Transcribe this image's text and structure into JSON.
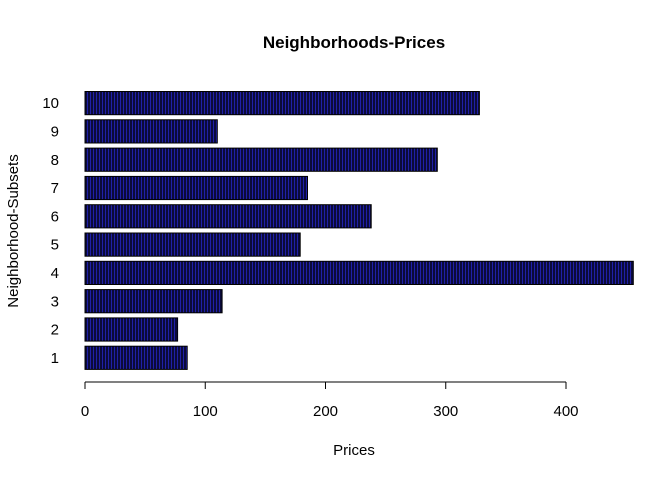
{
  "chart_data": {
    "type": "bar",
    "orientation": "horizontal",
    "title": "Neighborhoods-Prices",
    "xlabel": "Prices",
    "ylabel": "Neighborhood-Subsets",
    "categories": [
      "1",
      "2",
      "3",
      "4",
      "5",
      "6",
      "7",
      "8",
      "9",
      "10"
    ],
    "values": [
      85,
      77,
      114,
      456,
      179,
      238,
      185,
      293,
      110,
      328
    ],
    "xlim": [
      0,
      456
    ],
    "xticks": [
      "0",
      "100",
      "200",
      "300",
      "400"
    ],
    "grid": false,
    "legend": "none",
    "colors": {
      "bar_fill": "#0b0b3a",
      "bar_stripe": "#2020a8",
      "bar_border": "#000000"
    }
  }
}
